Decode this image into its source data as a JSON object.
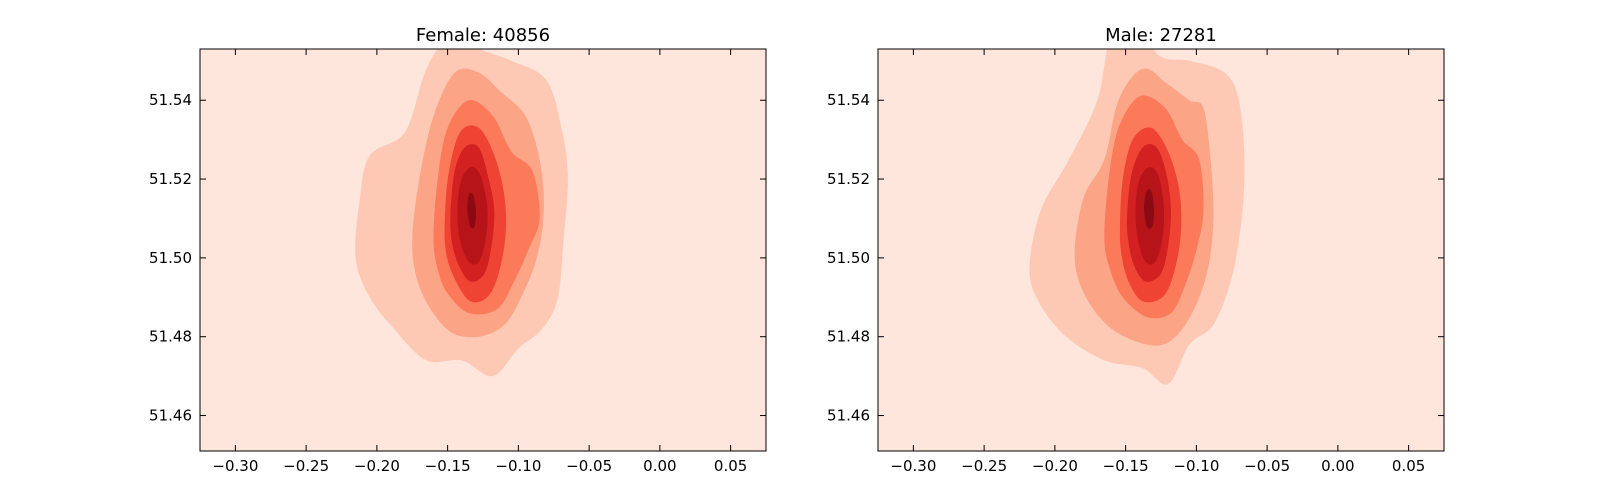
{
  "chart_data": [
    {
      "type": "contour",
      "title": "Female: 40856",
      "xlim": [
        -0.325,
        0.075
      ],
      "ylim": [
        51.451,
        51.553
      ],
      "xticks": [
        -0.3,
        -0.25,
        -0.2,
        -0.15,
        -0.1,
        -0.05,
        0.0,
        0.05
      ],
      "xtick_labels": [
        "−0.30",
        "−0.25",
        "−0.20",
        "−0.15",
        "−0.10",
        "−0.05",
        "0.00",
        "0.05"
      ],
      "yticks": [
        51.46,
        51.48,
        51.5,
        51.52,
        51.54
      ],
      "ytick_labels": [
        "51.46",
        "51.48",
        "51.50",
        "51.52",
        "51.54"
      ],
      "colormap": "Reds",
      "level_colors": [
        "#fee6dc",
        "#fdc9b5",
        "#fca486",
        "#fb7a5a",
        "#ef4433",
        "#d32020",
        "#b61419",
        "#8b0912"
      ],
      "contours": [
        {
          "level": 1,
          "points": [
            [
              -0.215,
              51.5
            ],
            [
              -0.212,
              51.515
            ],
            [
              -0.205,
              51.526
            ],
            [
              -0.18,
              51.532
            ],
            [
              -0.165,
              51.548
            ],
            [
              -0.148,
              51.556
            ],
            [
              -0.128,
              51.553
            ],
            [
              -0.105,
              51.55
            ],
            [
              -0.08,
              51.545
            ],
            [
              -0.069,
              51.532
            ],
            [
              -0.065,
              51.52
            ],
            [
              -0.068,
              51.505
            ],
            [
              -0.072,
              51.49
            ],
            [
              -0.083,
              51.482
            ],
            [
              -0.1,
              51.477
            ],
            [
              -0.118,
              51.47
            ],
            [
              -0.14,
              51.474
            ],
            [
              -0.165,
              51.474
            ],
            [
              -0.188,
              51.482
            ],
            [
              -0.205,
              51.49
            ]
          ]
        },
        {
          "level": 2,
          "points": [
            [
              -0.175,
              51.505
            ],
            [
              -0.17,
              51.52
            ],
            [
              -0.16,
              51.536
            ],
            [
              -0.145,
              51.547
            ],
            [
              -0.128,
              51.547
            ],
            [
              -0.112,
              51.542
            ],
            [
              -0.095,
              51.536
            ],
            [
              -0.085,
              51.525
            ],
            [
              -0.082,
              51.512
            ],
            [
              -0.087,
              51.5
            ],
            [
              -0.098,
              51.49
            ],
            [
              -0.11,
              51.483
            ],
            [
              -0.128,
              51.48
            ],
            [
              -0.147,
              51.481
            ],
            [
              -0.162,
              51.487
            ],
            [
              -0.172,
              51.495
            ]
          ]
        },
        {
          "level": 3,
          "points": [
            [
              -0.16,
              51.505
            ],
            [
              -0.157,
              51.52
            ],
            [
              -0.15,
              51.533
            ],
            [
              -0.135,
              51.54
            ],
            [
              -0.118,
              51.536
            ],
            [
              -0.105,
              51.527
            ],
            [
              -0.09,
              51.522
            ],
            [
              -0.085,
              51.51
            ],
            [
              -0.093,
              51.502
            ],
            [
              -0.103,
              51.494
            ],
            [
              -0.115,
              51.487
            ],
            [
              -0.135,
              51.486
            ],
            [
              -0.15,
              51.491
            ],
            [
              -0.157,
              51.497
            ]
          ]
        },
        {
          "level": 4,
          "points": [
            [
              -0.152,
              51.51
            ],
            [
              -0.149,
              51.522
            ],
            [
              -0.141,
              51.532
            ],
            [
              -0.128,
              51.533
            ],
            [
              -0.117,
              51.526
            ],
            [
              -0.11,
              51.516
            ],
            [
              -0.109,
              51.506
            ],
            [
              -0.114,
              51.496
            ],
            [
              -0.122,
              51.49
            ],
            [
              -0.134,
              51.489
            ],
            [
              -0.144,
              51.494
            ],
            [
              -0.151,
              51.501
            ]
          ]
        },
        {
          "level": 5,
          "points": [
            [
              -0.148,
              51.511
            ],
            [
              -0.145,
              51.522
            ],
            [
              -0.138,
              51.528
            ],
            [
              -0.128,
              51.528
            ],
            [
              -0.121,
              51.52
            ],
            [
              -0.117,
              51.512
            ],
            [
              -0.119,
              51.503
            ],
            [
              -0.124,
              51.496
            ],
            [
              -0.134,
              51.494
            ],
            [
              -0.142,
              51.498
            ],
            [
              -0.147,
              51.504
            ]
          ]
        },
        {
          "level": 6,
          "points": [
            [
              -0.143,
              51.511
            ],
            [
              -0.141,
              51.519
            ],
            [
              -0.134,
              51.523
            ],
            [
              -0.127,
              51.521
            ],
            [
              -0.122,
              51.513
            ],
            [
              -0.123,
              51.505
            ],
            [
              -0.128,
              51.499
            ],
            [
              -0.135,
              51.499
            ],
            [
              -0.141,
              51.504
            ]
          ]
        },
        {
          "level": 7,
          "points": [
            [
              -0.136,
              51.512
            ],
            [
              -0.135,
              51.516
            ],
            [
              -0.132,
              51.516
            ],
            [
              -0.13,
              51.512
            ],
            [
              -0.131,
              51.508
            ],
            [
              -0.134,
              51.508
            ]
          ]
        }
      ]
    },
    {
      "type": "contour",
      "title": "Male: 27281",
      "xlim": [
        -0.325,
        0.075
      ],
      "ylim": [
        51.451,
        51.553
      ],
      "xticks": [
        -0.3,
        -0.25,
        -0.2,
        -0.15,
        -0.1,
        -0.05,
        0.0,
        0.05
      ],
      "xtick_labels": [
        "−0.30",
        "−0.25",
        "−0.20",
        "−0.15",
        "−0.10",
        "−0.05",
        "0.00",
        "0.05"
      ],
      "yticks": [
        51.46,
        51.48,
        51.5,
        51.52,
        51.54
      ],
      "ytick_labels": [
        "51.46",
        "51.48",
        "51.50",
        "51.52",
        "51.54"
      ],
      "colormap": "Reds",
      "level_colors": [
        "#fee6dc",
        "#fdc9b5",
        "#fca486",
        "#fb7a5a",
        "#ef4433",
        "#d32020",
        "#b61419",
        "#8b0912"
      ],
      "contours": [
        {
          "level": 1,
          "points": [
            [
              -0.218,
              51.497
            ],
            [
              -0.21,
              51.512
            ],
            [
              -0.19,
              51.525
            ],
            [
              -0.17,
              51.54
            ],
            [
              -0.16,
              51.556
            ],
            [
              -0.14,
              51.557
            ],
            [
              -0.125,
              51.551
            ],
            [
              -0.105,
              51.55
            ],
            [
              -0.08,
              51.547
            ],
            [
              -0.07,
              51.54
            ],
            [
              -0.066,
              51.525
            ],
            [
              -0.068,
              51.51
            ],
            [
              -0.075,
              51.495
            ],
            [
              -0.088,
              51.483
            ],
            [
              -0.105,
              51.478
            ],
            [
              -0.12,
              51.468
            ],
            [
              -0.138,
              51.472
            ],
            [
              -0.165,
              51.474
            ],
            [
              -0.192,
              51.48
            ],
            [
              -0.21,
              51.488
            ]
          ]
        },
        {
          "level": 2,
          "points": [
            [
              -0.186,
              51.5
            ],
            [
              -0.18,
              51.515
            ],
            [
              -0.165,
              51.525
            ],
            [
              -0.155,
              51.54
            ],
            [
              -0.138,
              51.548
            ],
            [
              -0.12,
              51.544
            ],
            [
              -0.105,
              51.54
            ],
            [
              -0.095,
              51.538
            ],
            [
              -0.09,
              51.525
            ],
            [
              -0.088,
              51.51
            ],
            [
              -0.092,
              51.497
            ],
            [
              -0.103,
              51.486
            ],
            [
              -0.118,
              51.479
            ],
            [
              -0.135,
              51.478
            ],
            [
              -0.16,
              51.482
            ],
            [
              -0.178,
              51.49
            ]
          ]
        },
        {
          "level": 3,
          "points": [
            [
              -0.165,
              51.505
            ],
            [
              -0.162,
              51.52
            ],
            [
              -0.155,
              51.533
            ],
            [
              -0.14,
              51.541
            ],
            [
              -0.122,
              51.538
            ],
            [
              -0.11,
              51.53
            ],
            [
              -0.098,
              51.525
            ],
            [
              -0.095,
              51.512
            ],
            [
              -0.1,
              51.502
            ],
            [
              -0.108,
              51.493
            ],
            [
              -0.118,
              51.486
            ],
            [
              -0.135,
              51.485
            ],
            [
              -0.152,
              51.49
            ],
            [
              -0.161,
              51.497
            ]
          ]
        },
        {
          "level": 4,
          "points": [
            [
              -0.154,
              51.508
            ],
            [
              -0.152,
              51.52
            ],
            [
              -0.145,
              51.53
            ],
            [
              -0.132,
              51.533
            ],
            [
              -0.12,
              51.527
            ],
            [
              -0.112,
              51.517
            ],
            [
              -0.111,
              51.506
            ],
            [
              -0.116,
              51.496
            ],
            [
              -0.124,
              51.49
            ],
            [
              -0.138,
              51.489
            ],
            [
              -0.148,
              51.494
            ],
            [
              -0.153,
              51.501
            ]
          ]
        },
        {
          "level": 5,
          "points": [
            [
              -0.149,
              51.51
            ],
            [
              -0.146,
              51.521
            ],
            [
              -0.138,
              51.528
            ],
            [
              -0.128,
              51.528
            ],
            [
              -0.121,
              51.521
            ],
            [
              -0.118,
              51.512
            ],
            [
              -0.12,
              51.503
            ],
            [
              -0.125,
              51.496
            ],
            [
              -0.136,
              51.494
            ],
            [
              -0.144,
              51.498
            ],
            [
              -0.148,
              51.504
            ]
          ]
        },
        {
          "level": 6,
          "points": [
            [
              -0.143,
              51.511
            ],
            [
              -0.141,
              51.519
            ],
            [
              -0.134,
              51.523
            ],
            [
              -0.127,
              51.521
            ],
            [
              -0.123,
              51.513
            ],
            [
              -0.124,
              51.505
            ],
            [
              -0.129,
              51.499
            ],
            [
              -0.136,
              51.499
            ],
            [
              -0.141,
              51.504
            ]
          ]
        },
        {
          "level": 7,
          "points": [
            [
              -0.137,
              51.513
            ],
            [
              -0.135,
              51.517
            ],
            [
              -0.132,
              51.517
            ],
            [
              -0.13,
              51.513
            ],
            [
              -0.131,
              51.508
            ],
            [
              -0.135,
              51.508
            ]
          ]
        }
      ]
    }
  ]
}
